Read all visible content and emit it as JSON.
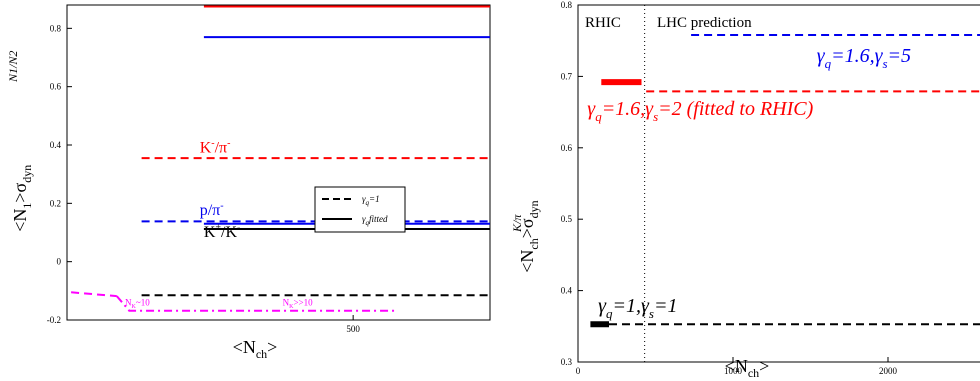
{
  "colors": {
    "black": "#000000",
    "red": "#ff0000",
    "blue": "#0000ee",
    "magenta": "#ff00ff"
  },
  "chart_data": [
    {
      "type": "line",
      "ylabel_main": "<N",
      "ylabel_sub1": "1",
      "ylabel_mid": ">σ",
      "ylabel_sub2": "dyn",
      "ylabel_super": "N1/N2",
      "xlabel_main": "<N",
      "xlabel_sub": "ch",
      "xlabel_end": ">",
      "xlim": [
        -190,
        830
      ],
      "ylim": [
        -0.2,
        0.88
      ],
      "xticks": [
        {
          "v": 500,
          "label": "500"
        }
      ],
      "yticks": [
        {
          "v": -0.2,
          "label": "-0.2"
        },
        {
          "v": 0,
          "label": "0"
        },
        {
          "v": 0.2,
          "label": "0.2"
        },
        {
          "v": 0.4,
          "label": "0.4"
        },
        {
          "v": 0.6,
          "label": "0.6"
        },
        {
          "v": 0.8,
          "label": "0.8"
        }
      ],
      "legend": {
        "position": "right",
        "entries": [
          {
            "main": "γ",
            "sub": "q",
            "rest": "=1",
            "style": "dashed"
          },
          {
            "main": "γ",
            "sub": "q",
            "rest": "fitted",
            "style": "solid"
          }
        ]
      },
      "series": [
        {
          "color": "red",
          "style": "solid",
          "x": [
            140,
            830
          ],
          "y": [
            0.875,
            0.875
          ]
        },
        {
          "color": "blue",
          "style": "solid",
          "x": [
            140,
            830
          ],
          "y": [
            0.77,
            0.77
          ]
        },
        {
          "color": "red",
          "style": "dashed",
          "x": [
            -10,
            830
          ],
          "y": [
            0.355,
            0.355
          ]
        },
        {
          "color": "blue",
          "style": "dashed",
          "x": [
            -10,
            830
          ],
          "y": [
            0.138,
            0.138
          ]
        },
        {
          "color": "blue",
          "style": "solid",
          "x": [
            140,
            830
          ],
          "y": [
            0.13,
            0.13
          ]
        },
        {
          "color": "black",
          "style": "solid",
          "x": [
            140,
            830
          ],
          "y": [
            0.112,
            0.112
          ]
        },
        {
          "color": "black",
          "style": "dashed",
          "x": [
            -10,
            830
          ],
          "y": [
            -0.115,
            -0.115
          ]
        },
        {
          "color": "magenta",
          "style": "dashdot",
          "x": [
            -70,
            -40,
            600
          ],
          "y": [
            -0.118,
            -0.168,
            -0.168
          ]
        },
        {
          "color": "magenta",
          "style": "dashed",
          "x": [
            -180,
            -70
          ],
          "y": [
            -0.105,
            -0.118
          ]
        }
      ],
      "annotations": [
        {
          "parts": [
            {
              "t": "K"
            },
            {
              "t": "-",
              "sup": true
            },
            {
              "t": "/π"
            },
            {
              "t": "-",
              "sup": true
            }
          ],
          "color": "red",
          "x": 130,
          "y": 0.375,
          "size": 16
        },
        {
          "parts": [
            {
              "t": "p/π"
            },
            {
              "t": "-",
              "sup": true
            }
          ],
          "color": "blue",
          "x": 130,
          "y": 0.16,
          "size": 16
        },
        {
          "parts": [
            {
              "t": "K"
            },
            {
              "t": "+",
              "sup": true
            },
            {
              "t": "/K"
            },
            {
              "t": "-",
              "sup": true
            }
          ],
          "color": "black",
          "x": 140,
          "y": 0.085,
          "size": 16
        },
        {
          "parts": [
            {
              "t": "N"
            },
            {
              "t": "K",
              "sub": true
            },
            {
              "t": "~10"
            }
          ],
          "color": "magenta",
          "x": -50,
          "y": -0.15,
          "size": 9
        },
        {
          "parts": [
            {
              "t": "N"
            },
            {
              "t": "K",
              "sub": true
            },
            {
              "t": ">>10"
            }
          ],
          "color": "magenta",
          "x": 330,
          "y": -0.15,
          "size": 9
        }
      ]
    },
    {
      "type": "line",
      "ylabel_main": "<N",
      "ylabel_sub1": "ch",
      "ylabel_mid": ">σ",
      "ylabel_sub2": "dyn",
      "ylabel_super": "K/π",
      "xlabel_main": "<N",
      "xlabel_sub": "ch",
      "xlabel_end": ">",
      "xlim": [
        0,
        2600
      ],
      "ylim": [
        0.3,
        0.8
      ],
      "xticks": [
        {
          "v": 0,
          "label": "0"
        },
        {
          "v": 1000,
          "label": "1000"
        },
        {
          "v": 2000,
          "label": "2000"
        }
      ],
      "yticks": [
        {
          "v": 0.3,
          "label": "0.3"
        },
        {
          "v": 0.4,
          "label": "0.4"
        },
        {
          "v": 0.5,
          "label": "0.5"
        },
        {
          "v": 0.6,
          "label": "0.6"
        },
        {
          "v": 0.7,
          "label": "0.7"
        },
        {
          "v": 0.8,
          "label": "0.8"
        }
      ],
      "region_labels": [
        "RHIC",
        "LHC prediction"
      ],
      "divider_x": 430,
      "series": [
        {
          "color": "blue",
          "style": "dashed",
          "x": [
            730,
            2600
          ],
          "y": [
            0.758,
            0.758
          ]
        },
        {
          "color": "red",
          "style": "thick",
          "x": [
            150,
            410
          ],
          "y": [
            0.692,
            0.692
          ]
        },
        {
          "color": "red",
          "style": "dashed",
          "x": [
            440,
            2600
          ],
          "y": [
            0.679,
            0.679
          ]
        },
        {
          "color": "black",
          "style": "thick",
          "x": [
            80,
            200
          ],
          "y": [
            0.353,
            0.353
          ]
        },
        {
          "color": "black",
          "style": "dashed",
          "x": [
            200,
            2600
          ],
          "y": [
            0.353,
            0.353
          ]
        }
      ],
      "annotations": [
        {
          "parts": [
            {
              "t": "γ"
            },
            {
              "t": "q",
              "sub": true
            },
            {
              "t": "=1.6,γ"
            },
            {
              "t": "s",
              "sub": true
            },
            {
              "t": "=5"
            }
          ],
          "color": "blue",
          "x": 1540,
          "y": 0.72,
          "size": 20,
          "italic": true
        },
        {
          "parts": [
            {
              "t": "γ"
            },
            {
              "t": "q",
              "sub": true
            },
            {
              "t": "=1.6,γ"
            },
            {
              "t": "s",
              "sub": true
            },
            {
              "t": "=2 (fitted to RHIC)"
            }
          ],
          "color": "red",
          "x": 60,
          "y": 0.646,
          "size": 20,
          "italic": true
        },
        {
          "parts": [
            {
              "t": "γ"
            },
            {
              "t": "q",
              "sub": true
            },
            {
              "t": "=1,γ"
            },
            {
              "t": "s",
              "sub": true
            },
            {
              "t": "=1"
            }
          ],
          "color": "black",
          "x": 130,
          "y": 0.37,
          "size": 20,
          "italic": true
        }
      ]
    }
  ]
}
